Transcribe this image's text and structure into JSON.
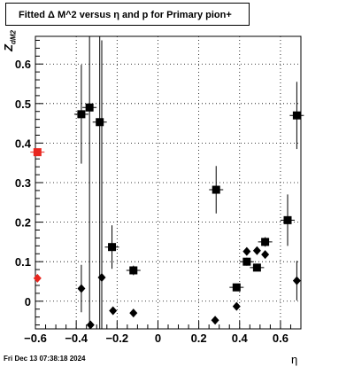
{
  "title": "Fitted Δ M^2 versus η and p for Primary pion+",
  "timestamp": "Fri Dec 13 07:38:18 2024",
  "chart_data": {
    "type": "scatter",
    "title": "Fitted Δ M^2 versus η and p for Primary pion+",
    "xlabel": "η",
    "ylabel": "Z",
    "ylabel_sub": "dM2",
    "xlim": [
      -0.6,
      0.7
    ],
    "ylim": [
      -0.07,
      0.67
    ],
    "xticks": [
      -0.6,
      -0.4,
      -0.2,
      0,
      0.2,
      0.4,
      0.6
    ],
    "xtick_labels": [
      "−0.6",
      "−0.4",
      "−0.2",
      "0",
      "0.2",
      "0.4",
      "0.6"
    ],
    "yticks": [
      0,
      0.1,
      0.2,
      0.3,
      0.4,
      0.5,
      0.6
    ],
    "ytick_labels": [
      "0",
      "0.1",
      "0.2",
      "0.3",
      "0.4",
      "0.5",
      "0.6"
    ],
    "grid": true,
    "series": [
      {
        "marker": "square",
        "color": "#000000",
        "points": [
          {
            "x": -0.375,
            "y": 0.473,
            "err": 0.125
          },
          {
            "x": -0.335,
            "y": 0.49,
            "err": 0.6
          },
          {
            "x": -0.285,
            "y": 0.453,
            "err": 0.6
          },
          {
            "x": -0.225,
            "y": 0.137,
            "err": 0.055
          },
          {
            "x": -0.12,
            "y": 0.078,
            "err": 0.012
          },
          {
            "x": 0.285,
            "y": 0.282,
            "err": 0.06
          },
          {
            "x": 0.385,
            "y": 0.035,
            "err": 0.008
          },
          {
            "x": 0.435,
            "y": 0.1,
            "err": 0.01
          },
          {
            "x": 0.485,
            "y": 0.085,
            "err": 0.008
          },
          {
            "x": 0.525,
            "y": 0.15,
            "err": 0.012
          },
          {
            "x": 0.635,
            "y": 0.205,
            "err": 0.065
          },
          {
            "x": 0.68,
            "y": 0.47,
            "err": 0.085
          }
        ]
      },
      {
        "marker": "diamond",
        "color": "#000000",
        "points": [
          {
            "x": -0.375,
            "y": 0.032,
            "err": 0.06
          },
          {
            "x": -0.33,
            "y": -0.06,
            "err": 0.0
          },
          {
            "x": -0.275,
            "y": 0.06,
            "err": 0.6
          },
          {
            "x": -0.22,
            "y": -0.024,
            "err": 0.0
          },
          {
            "x": -0.12,
            "y": -0.03,
            "err": 0.0
          },
          {
            "x": 0.28,
            "y": -0.048,
            "err": 0.0
          },
          {
            "x": 0.385,
            "y": -0.013,
            "err": 0.0
          },
          {
            "x": 0.435,
            "y": 0.126,
            "err": 0.0
          },
          {
            "x": 0.485,
            "y": 0.128,
            "err": 0.0
          },
          {
            "x": 0.525,
            "y": 0.118,
            "err": 0.0
          },
          {
            "x": 0.68,
            "y": 0.052,
            "err": 0.05
          }
        ]
      },
      {
        "marker": "square",
        "color": "#e8261f",
        "points": [
          {
            "x": -0.59,
            "y": 0.377,
            "err": 0.0
          }
        ]
      },
      {
        "marker": "diamond",
        "color": "#e8261f",
        "points": [
          {
            "x": -0.59,
            "y": 0.058,
            "err": 0.0
          }
        ]
      }
    ]
  }
}
